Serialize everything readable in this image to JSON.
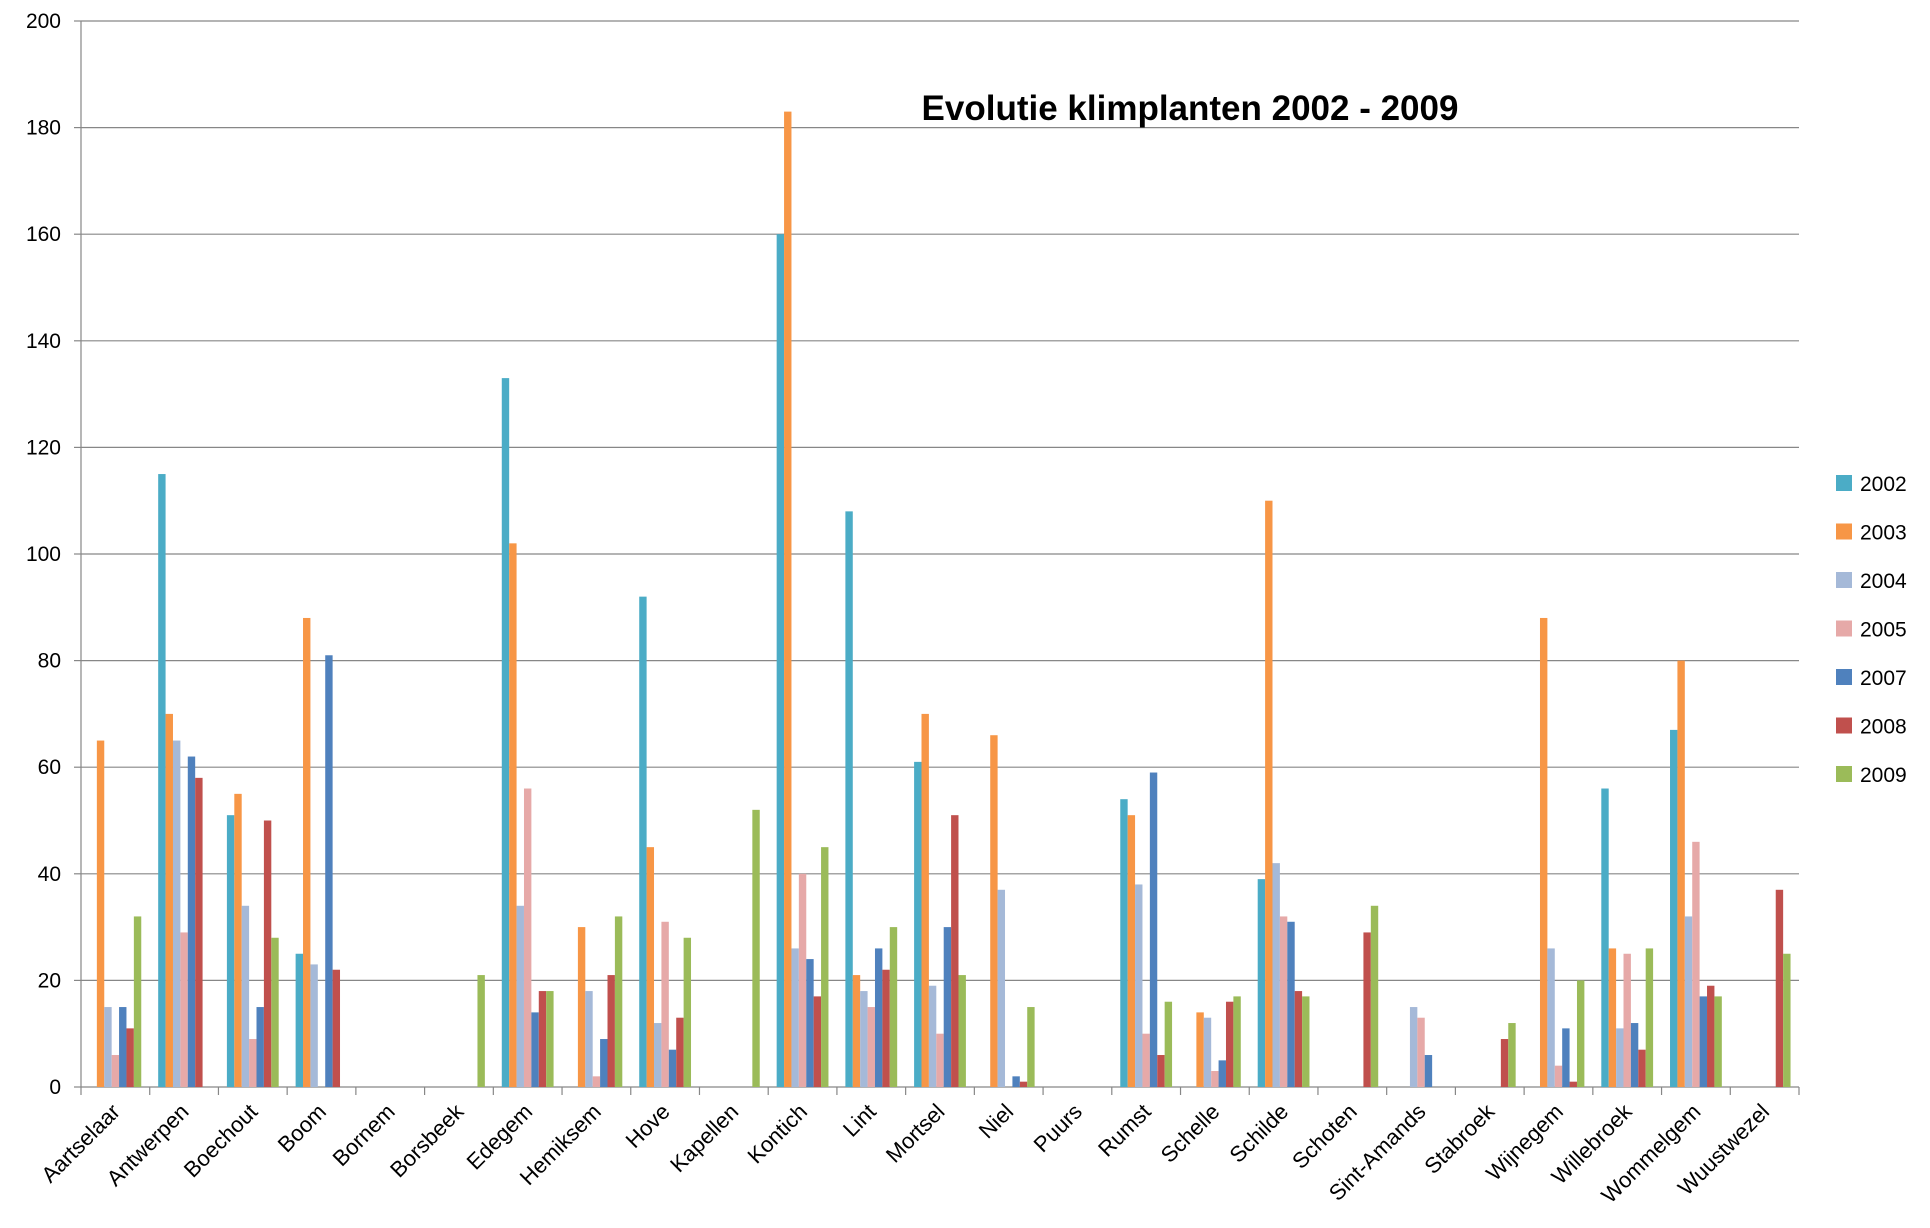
{
  "chart_data": {
    "type": "bar",
    "title": "Evolutie klimplanten 2002 - 2009",
    "xlabel": "",
    "ylabel": "",
    "ylim": [
      0,
      200
    ],
    "yticks": [
      0,
      20,
      40,
      60,
      80,
      100,
      120,
      140,
      160,
      180,
      200
    ],
    "grid": true,
    "legend_position": "right",
    "categories": [
      "Aartselaar",
      "Antwerpen",
      "Boechout",
      "Boom",
      "Bornem",
      "Borsbeek",
      "Edegem",
      "Hemiksem",
      "Hove",
      "Kapellen",
      "Kontich",
      "Lint",
      "Mortsel",
      "Niel",
      "Puurs",
      "Rumst",
      "Schelle",
      "Schilde",
      "Schoten",
      "Sint-Amands",
      "Stabroek",
      "Wijnegem",
      "Willebroek",
      "Wommelgem",
      "Wuustwezel"
    ],
    "series": [
      {
        "name": "2002",
        "color": "#4BACC6",
        "values": [
          0,
          115,
          51,
          25,
          0,
          0,
          133,
          0,
          92,
          0,
          160,
          108,
          61,
          0,
          0,
          54,
          0,
          39,
          0,
          0,
          0,
          0,
          56,
          67,
          0
        ]
      },
      {
        "name": "2003",
        "color": "#F79646",
        "values": [
          65,
          70,
          55,
          88,
          0,
          0,
          102,
          30,
          45,
          0,
          183,
          21,
          70,
          66,
          0,
          51,
          14,
          110,
          0,
          0,
          0,
          88,
          26,
          80,
          0
        ]
      },
      {
        "name": "2004",
        "color": "#A5B9D8",
        "values": [
          15,
          65,
          34,
          23,
          0,
          0,
          34,
          18,
          12,
          0,
          26,
          18,
          19,
          37,
          0,
          38,
          13,
          42,
          0,
          15,
          0,
          26,
          11,
          32,
          0
        ]
      },
      {
        "name": "2005",
        "color": "#E6A9A8",
        "values": [
          6,
          29,
          9,
          0,
          0,
          0,
          56,
          2,
          31,
          0,
          40,
          15,
          10,
          0,
          0,
          10,
          3,
          32,
          0,
          13,
          0,
          4,
          25,
          46,
          0
        ]
      },
      {
        "name": "2007",
        "color": "#4F81BD",
        "values": [
          15,
          62,
          15,
          81,
          0,
          0,
          14,
          9,
          7,
          0,
          24,
          26,
          30,
          2,
          0,
          59,
          5,
          31,
          0,
          6,
          0,
          11,
          12,
          17,
          0
        ]
      },
      {
        "name": "2008",
        "color": "#C0504D",
        "values": [
          11,
          58,
          50,
          22,
          0,
          0,
          18,
          21,
          13,
          0,
          17,
          22,
          51,
          1,
          0,
          6,
          16,
          18,
          29,
          0,
          9,
          1,
          7,
          19,
          37
        ]
      },
      {
        "name": "2009",
        "color": "#9BBB59",
        "values": [
          32,
          0,
          28,
          0,
          0,
          21,
          18,
          32,
          28,
          52,
          45,
          30,
          21,
          15,
          0,
          16,
          17,
          17,
          34,
          0,
          12,
          20,
          26,
          17,
          25
        ]
      }
    ]
  }
}
